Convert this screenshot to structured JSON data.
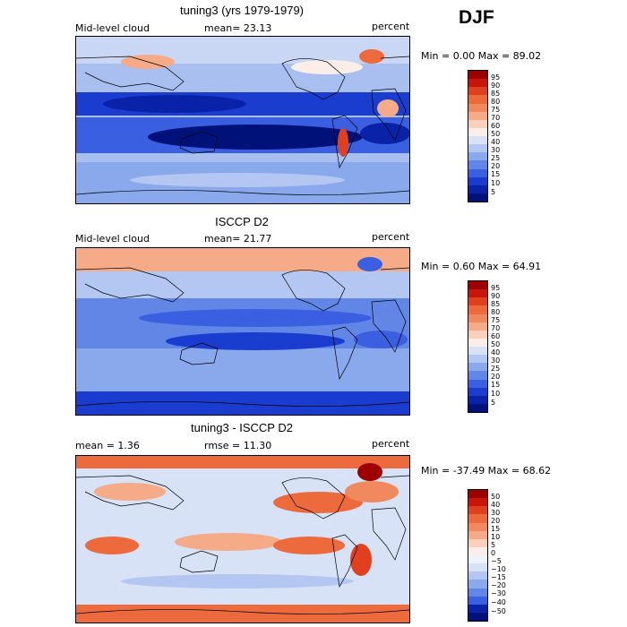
{
  "season": "DJF",
  "chart_data": [
    {
      "type": "heatmap",
      "title": "tuning3 (yrs 1979-1979)",
      "field_label": "Mid-level cloud",
      "mean_text": "mean=  23.13",
      "units": "percent",
      "minmax_text": "Min =    0.00 Max =  89.02",
      "colorbar_ticks": [
        "95",
        "90",
        "85",
        "80",
        "75",
        "70",
        "60",
        "50",
        "40",
        "30",
        "25",
        "20",
        "15",
        "10",
        "5"
      ],
      "colorbar_colors": [
        "#9e0000",
        "#c8140a",
        "#e0401e",
        "#ec6a3c",
        "#f08a5e",
        "#f5aa88",
        "#fad0bc",
        "#fbeee8",
        "#d8e2f7",
        "#b4c7f2",
        "#8aa8ec",
        "#6286e6",
        "#3a5fe0",
        "#1a3dd0",
        "#0a22a8",
        "#00127a"
      ],
      "mean": 23.13,
      "min": 0.0,
      "max": 89.02
    },
    {
      "type": "heatmap",
      "title": "ISCCP D2",
      "field_label": "Mid-level cloud",
      "mean_text": "mean=  21.77",
      "units": "percent",
      "minmax_text": "Min =    0.60 Max =  64.91",
      "colorbar_ticks": [
        "95",
        "90",
        "85",
        "80",
        "75",
        "70",
        "60",
        "50",
        "40",
        "30",
        "25",
        "20",
        "15",
        "10",
        "5"
      ],
      "colorbar_colors": [
        "#9e0000",
        "#c8140a",
        "#e0401e",
        "#ec6a3c",
        "#f08a5e",
        "#f5aa88",
        "#fad0bc",
        "#fbeee8",
        "#d8e2f7",
        "#b4c7f2",
        "#8aa8ec",
        "#6286e6",
        "#3a5fe0",
        "#1a3dd0",
        "#0a22a8",
        "#00127a"
      ],
      "mean": 21.77,
      "min": 0.6,
      "max": 64.91
    },
    {
      "type": "heatmap",
      "title": "tuning3 - ISCCP D2",
      "field_label": "mean =    1.36",
      "mean_text": "rmse =  11.30",
      "units": "percent",
      "minmax_text": "Min = -37.49 Max =  68.62",
      "colorbar_ticks": [
        "50",
        "40",
        "30",
        "20",
        "15",
        "10",
        "5",
        "0",
        "−5",
        "−10",
        "−15",
        "−20",
        "−30",
        "−40",
        "−50"
      ],
      "colorbar_colors": [
        "#9e0000",
        "#c8140a",
        "#e0401e",
        "#ec6a3c",
        "#f08a5e",
        "#f5aa88",
        "#fad0bc",
        "#fbeee8",
        "#eef2fb",
        "#d8e2f7",
        "#b4c7f2",
        "#8aa8ec",
        "#6286e6",
        "#3a5fe0",
        "#0a22a8",
        "#00127a"
      ],
      "mean": 1.36,
      "rmse": 11.3,
      "min": -37.49,
      "max": 68.62
    }
  ]
}
